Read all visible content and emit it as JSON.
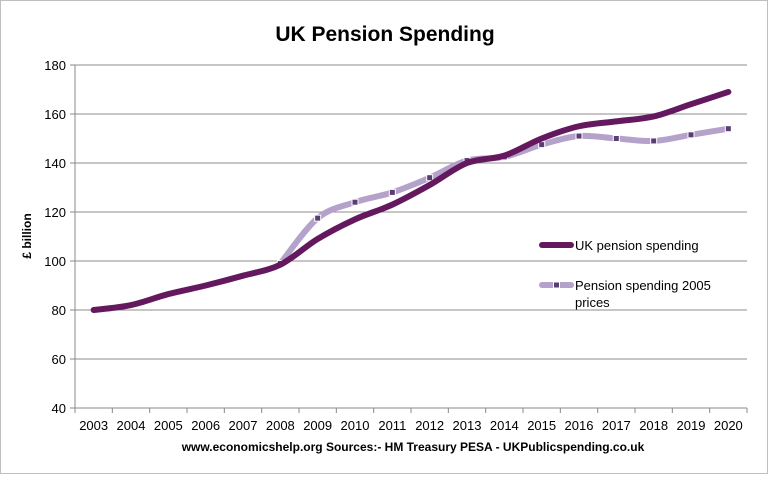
{
  "chart_data": {
    "type": "line",
    "title": "UK Pension Spending",
    "ylabel": "£ billion",
    "xlabel": "",
    "source_note": "www.economicshelp.org Sources:- HM Treasury PESA - UKPublicspending.co.uk",
    "ylim": [
      40,
      180
    ],
    "yticks": [
      40,
      60,
      80,
      100,
      120,
      140,
      160,
      180
    ],
    "x": [
      "2003",
      "2004",
      "2005",
      "2006",
      "2007",
      "2008",
      "2009",
      "2010",
      "2011",
      "2012",
      "2013",
      "2014",
      "2015",
      "2016",
      "2017",
      "2018",
      "2019",
      "2020"
    ],
    "series": [
      {
        "name": "UK pension spending",
        "color": "#64195f",
        "marker": "none",
        "values": [
          80,
          82,
          86.5,
          90,
          94,
          98.5,
          109,
          117,
          123,
          131,
          140,
          143,
          150,
          155,
          157,
          159,
          164,
          169
        ]
      },
      {
        "name": "Pension spending 2005 prices",
        "color": "#b5a2cb",
        "marker": "square",
        "values": [
          null,
          null,
          null,
          null,
          null,
          99,
          117.5,
          124,
          128,
          134,
          141,
          142.5,
          147.5,
          151,
          150,
          149,
          151.5,
          154
        ]
      }
    ],
    "legend": {
      "position": "right",
      "entries": [
        {
          "label_lines": [
            "UK pension spending"
          ]
        },
        {
          "label_lines": [
            "Pension spending 2005",
            "prices"
          ]
        }
      ]
    },
    "grid": "horizontal"
  }
}
